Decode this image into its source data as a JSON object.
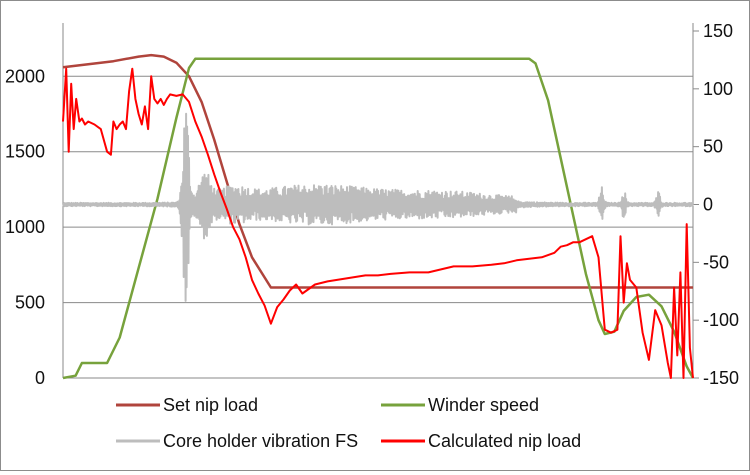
{
  "chart_data": {
    "type": "line",
    "title": "",
    "xlabel": "",
    "ylabel": "",
    "grid": true,
    "legend_position": "bottom",
    "y_left": {
      "range": [
        0,
        2300
      ],
      "ticks": [
        0,
        500,
        1000,
        1500,
        2000
      ],
      "tick_labels": [
        "0",
        "500",
        "1000",
        "1500",
        "2000"
      ]
    },
    "y_right": {
      "range": [
        -150,
        150
      ],
      "ticks": [
        -150,
        -100,
        -50,
        0,
        50,
        100,
        150
      ],
      "tick_labels": [
        "-150",
        "-100",
        "-50",
        "0",
        "50",
        "100",
        "150"
      ]
    },
    "x_range": [
      0,
      100
    ],
    "series": [
      {
        "name": "Set nip load",
        "axis": "left",
        "color": "#b0443c",
        "width": 2.5,
        "x": [
          0,
          4,
          8,
          12,
          14,
          16,
          18,
          20,
          22,
          24,
          26,
          28,
          30,
          33,
          35,
          100
        ],
        "y": [
          2060,
          2080,
          2100,
          2130,
          2140,
          2130,
          2090,
          2000,
          1830,
          1580,
          1300,
          1020,
          800,
          600,
          600,
          600
        ]
      },
      {
        "name": "Winder speed",
        "axis": "right",
        "color": "#77a23c",
        "width": 2.5,
        "x": [
          0,
          2,
          3,
          7,
          9,
          12,
          15,
          18,
          20,
          21,
          22,
          74,
          75,
          77,
          79,
          81,
          83,
          85,
          86,
          87.5,
          89,
          91,
          93,
          95,
          97,
          99,
          100
        ],
        "y": [
          -150,
          -148,
          -137,
          -137,
          -115,
          -55,
          5,
          75,
          118,
          126,
          126,
          126,
          122,
          90,
          40,
          -10,
          -60,
          -100,
          -112,
          -110,
          -92,
          -80,
          -78,
          -88,
          -110,
          -140,
          -150
        ]
      },
      {
        "name": "Core holder vibration FS",
        "axis": "right",
        "color": "#bdbdbd",
        "width": 2,
        "x": [
          0,
          100
        ],
        "y": [
          0,
          0
        ]
      },
      {
        "name": "Calculated nip load",
        "axis": "left",
        "color": "#ff0000",
        "width": 2,
        "x": [
          0,
          0.5,
          0.9,
          1.3,
          1.7,
          2.1,
          2.6,
          3,
          3.5,
          4,
          5,
          6,
          7,
          7.6,
          8,
          8.5,
          9,
          9.5,
          10,
          10.5,
          11,
          11.5,
          12,
          12.5,
          13,
          13.5,
          14,
          14.5,
          15,
          15.5,
          16,
          16.5,
          17,
          18,
          19,
          20,
          21,
          22,
          23,
          24,
          25,
          26,
          27,
          28,
          29,
          30,
          31,
          32,
          33,
          34,
          35,
          36,
          37,
          38,
          40,
          42,
          45,
          48,
          50,
          52,
          55,
          58,
          60,
          62,
          65,
          68,
          70,
          72,
          74,
          76,
          78,
          79,
          80,
          81,
          82,
          83,
          84,
          85,
          86,
          87,
          88,
          88.5,
          89,
          89.5,
          90,
          91,
          92,
          93,
          94,
          95,
          96,
          96.5,
          97,
          97.5,
          98,
          98.5,
          99,
          99.5,
          100
        ],
        "y": [
          1700,
          2050,
          1500,
          1950,
          1650,
          1850,
          1700,
          1720,
          1680,
          1700,
          1680,
          1650,
          1500,
          1480,
          1700,
          1650,
          1680,
          1700,
          1650,
          1900,
          2050,
          1850,
          1750,
          1680,
          1800,
          1650,
          2000,
          1850,
          1820,
          1850,
          1810,
          1850,
          1880,
          1870,
          1880,
          1830,
          1700,
          1600,
          1480,
          1350,
          1230,
          1120,
          1000,
          920,
          800,
          650,
          560,
          480,
          360,
          470,
          520,
          580,
          620,
          560,
          620,
          640,
          660,
          680,
          680,
          690,
          700,
          700,
          720,
          740,
          740,
          750,
          760,
          780,
          790,
          800,
          830,
          870,
          880,
          900,
          900,
          920,
          940,
          800,
          320,
          300,
          320,
          940,
          500,
          760,
          650,
          600,
          300,
          120,
          450,
          350,
          100,
          0,
          600,
          150,
          700,
          0,
          1020,
          200,
          0
        ]
      }
    ]
  },
  "legend": {
    "items": [
      {
        "label": "Set nip load",
        "color": "#b0443c"
      },
      {
        "label": "Winder speed",
        "color": "#77a23c"
      },
      {
        "label": "Core holder vibration FS",
        "color": "#bdbdbd"
      },
      {
        "label": "Calculated nip load",
        "color": "#ff0000"
      }
    ]
  }
}
